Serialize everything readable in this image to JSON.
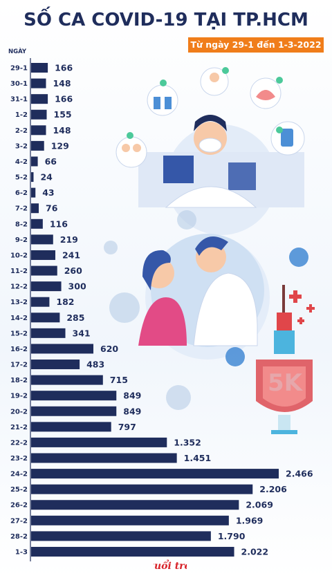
{
  "header": {
    "title": "SỐ CA COVID-19 TẠI TP.HCM",
    "subtitle": "Từ ngày 29-1 đến 1-3-2022"
  },
  "chart_data": {
    "type": "bar",
    "orientation": "horizontal",
    "ylabel": "NGÀY",
    "categories": [
      "29-1",
      "30-1",
      "31-1",
      "1-2",
      "2-2",
      "3-2",
      "4-2",
      "5-2",
      "6-2",
      "7-2",
      "8-2",
      "9-2",
      "10-2",
      "11-2",
      "12-2",
      "13-2",
      "14-2",
      "15-2",
      "16-2",
      "17-2",
      "18-2",
      "19-2",
      "20-2",
      "21-2",
      "22-2",
      "23-2",
      "24-2",
      "25-2",
      "26-2",
      "27-2",
      "28-2",
      "1-3"
    ],
    "values": [
      166,
      148,
      166,
      155,
      148,
      129,
      66,
      24,
      43,
      76,
      116,
      219,
      241,
      260,
      300,
      182,
      285,
      341,
      620,
      483,
      715,
      849,
      849,
      797,
      1352,
      1451,
      2466,
      2206,
      2069,
      1969,
      1790,
      2022
    ],
    "value_labels": [
      "166",
      "148",
      "166",
      "155",
      "148",
      "129",
      "66",
      "24",
      "43",
      "76",
      "116",
      "219",
      "241",
      "260",
      "300",
      "182",
      "285",
      "341",
      "620",
      "483",
      "715",
      "849",
      "849",
      "797",
      "1.352",
      "1.451",
      "2.466",
      "2.206",
      "2.069",
      "1.969",
      "1.790",
      "2.022"
    ],
    "xlim": [
      0,
      2466
    ],
    "grid": false,
    "legend": "none",
    "bar_color": "#1f2d5c"
  },
  "badge": {
    "text": "5K"
  },
  "logo": {
    "name": "tuoi-tre-logo",
    "color": "#d8232a"
  }
}
